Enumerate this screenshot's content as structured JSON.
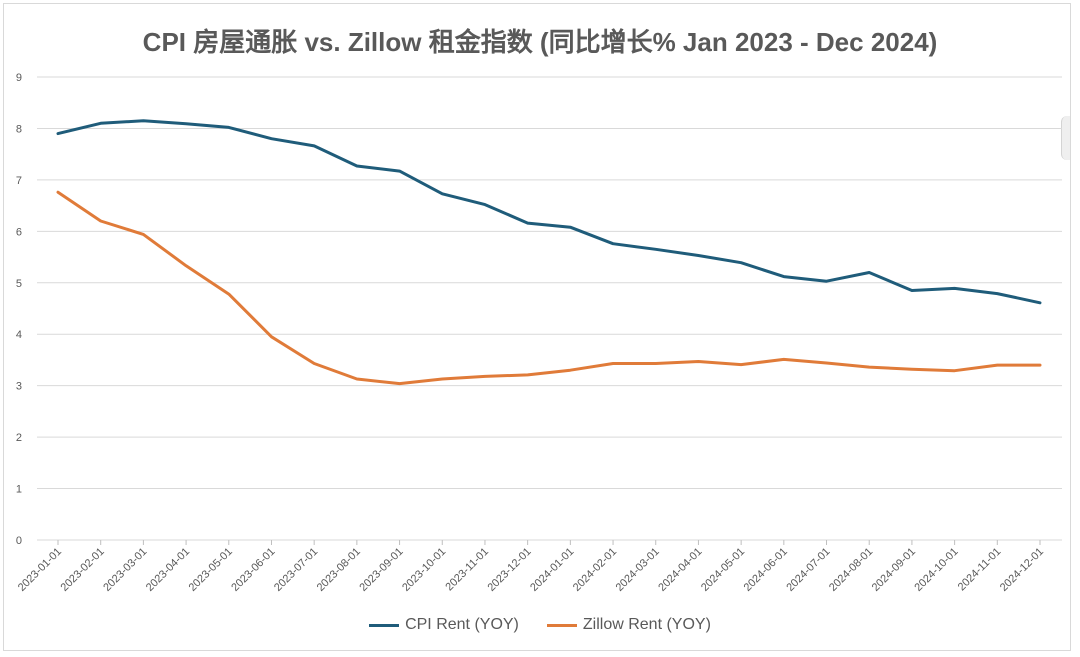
{
  "chart_data": {
    "type": "line",
    "title": "CPI 房屋通胀 vs. Zillow 租金指数 (同比增长% Jan 2023 - Dec 2024)",
    "x": [
      "2023-01-01",
      "2023-02-01",
      "2023-03-01",
      "2023-04-01",
      "2023-05-01",
      "2023-06-01",
      "2023-07-01",
      "2023-08-01",
      "2023-09-01",
      "2023-10-01",
      "2023-11-01",
      "2023-12-01",
      "2024-01-01",
      "2024-02-01",
      "2024-03-01",
      "2024-04-01",
      "2024-05-01",
      "2024-06-01",
      "2024-07-01",
      "2024-08-01",
      "2024-09-01",
      "2024-10-01",
      "2024-11-01",
      "2024-12-01"
    ],
    "y_ticks": [
      "0",
      "1",
      "2",
      "3",
      "4",
      "5",
      "6",
      "7",
      "8",
      "9"
    ],
    "ylim": [
      0,
      9
    ],
    "grid": true,
    "legend_position": "bottom",
    "series": [
      {
        "name": "CPI Rent (YOY)",
        "color": "#1f5c7a",
        "values": [
          7.9,
          8.1,
          8.15,
          8.09,
          8.02,
          7.8,
          7.66,
          7.27,
          7.17,
          6.73,
          6.52,
          6.16,
          6.08,
          5.76,
          5.65,
          5.53,
          5.39,
          5.12,
          5.03,
          5.2,
          4.85,
          4.89,
          4.79,
          4.61
        ]
      },
      {
        "name": "Zillow Rent (YOY)",
        "color": "#e07b39",
        "values": [
          6.76,
          6.2,
          5.94,
          5.33,
          4.78,
          3.95,
          3.43,
          3.13,
          3.04,
          3.13,
          3.18,
          3.21,
          3.3,
          3.43,
          3.43,
          3.47,
          3.41,
          3.51,
          3.44,
          3.36,
          3.32,
          3.29,
          3.4,
          3.4
        ]
      }
    ]
  }
}
